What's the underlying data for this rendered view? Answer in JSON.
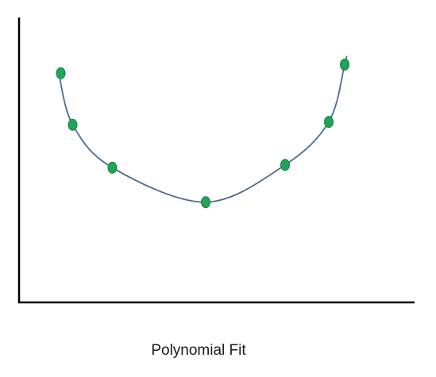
{
  "caption": "Polynomial Fit",
  "colors": {
    "axis": "#000000",
    "curve": "#4a6c93",
    "point_fill": "#1fa45a",
    "point_stroke": "#15803f"
  },
  "chart_data": {
    "type": "scatter",
    "title": "",
    "xlabel": "",
    "ylabel": "",
    "xlim": [
      0,
      10
    ],
    "ylim": [
      0,
      10
    ],
    "grid": false,
    "points": [
      {
        "x": 1.05,
        "y": 8.0
      },
      {
        "x": 1.35,
        "y": 6.2
      },
      {
        "x": 2.35,
        "y": 4.7
      },
      {
        "x": 4.7,
        "y": 3.5
      },
      {
        "x": 6.7,
        "y": 4.8
      },
      {
        "x": 7.8,
        "y": 6.3
      },
      {
        "x": 8.2,
        "y": 8.3
      }
    ],
    "fit_curve": [
      {
        "x": 1.0,
        "y": 8.0
      },
      {
        "x": 1.35,
        "y": 6.2
      },
      {
        "x": 2.35,
        "y": 4.7
      },
      {
        "x": 4.7,
        "y": 3.5
      },
      {
        "x": 6.7,
        "y": 4.8
      },
      {
        "x": 7.8,
        "y": 6.3
      },
      {
        "x": 8.2,
        "y": 8.3
      },
      {
        "x": 8.25,
        "y": 8.6
      }
    ]
  }
}
